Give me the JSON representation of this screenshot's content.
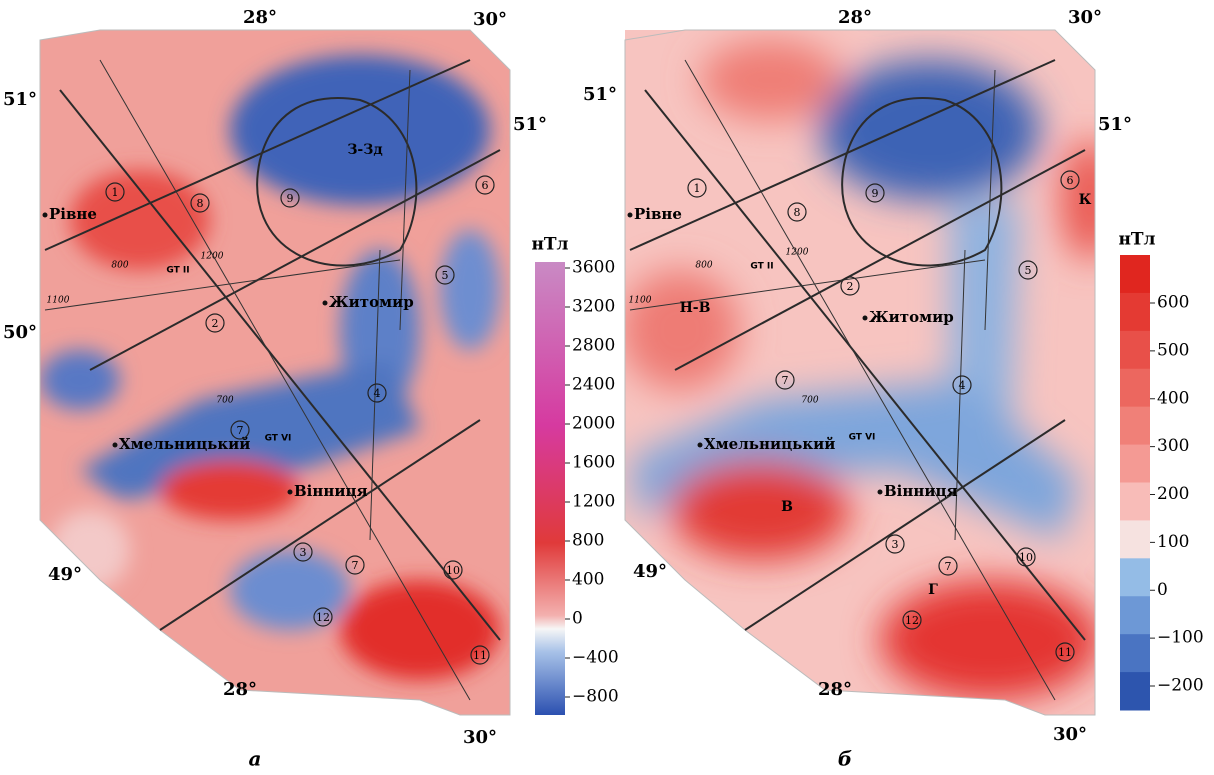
{
  "panels": [
    {
      "label": "а",
      "coordinates": [
        "28°",
        "30°",
        "51°",
        "51°",
        "50°",
        "49°",
        "28°",
        "30°"
      ],
      "places": [
        "Рівне",
        "Житомир",
        "Хмельницький",
        "Вінниця"
      ],
      "zones": [
        "З-Зд"
      ],
      "fault_numbers": [
        "1",
        "8",
        "9",
        "6",
        "5",
        "2",
        "4",
        "7",
        "3",
        "7",
        "10",
        "12",
        "11"
      ],
      "profiles": [
        "GT II",
        "GT VI"
      ],
      "contour_labels": [
        "1200",
        "800",
        "1100",
        "700"
      ],
      "colorbar": {
        "unit": "нТл",
        "ticks": [
          "3600",
          "3200",
          "2800",
          "2400",
          "2000",
          "1600",
          "1200",
          "800",
          "400",
          "0",
          "−400",
          "−800"
        ]
      }
    },
    {
      "label": "б",
      "coordinates": [
        "28°",
        "30°",
        "51°",
        "51°",
        "49°",
        "28°",
        "30°"
      ],
      "places": [
        "Рівне",
        "Житомир",
        "Хмельницький",
        "Вінниця"
      ],
      "zones": [
        "К",
        "Н-В",
        "В",
        "Г"
      ],
      "fault_numbers": [
        "1",
        "8",
        "9",
        "6",
        "5",
        "2",
        "4",
        "7",
        "3",
        "7",
        "10",
        "12",
        "11"
      ],
      "profiles": [
        "GT II",
        "GT VI"
      ],
      "contour_labels": [
        "1200",
        "800",
        "1100",
        "700"
      ],
      "colorbar": {
        "unit": "нТл",
        "ticks": [
          "600",
          "500",
          "400",
          "300",
          "200",
          "100",
          "0",
          "−100",
          "−200"
        ]
      }
    }
  ]
}
